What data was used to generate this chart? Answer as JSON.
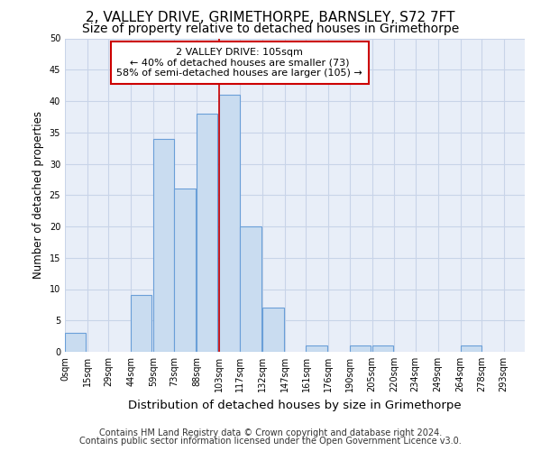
{
  "title1": "2, VALLEY DRIVE, GRIMETHORPE, BARNSLEY, S72 7FT",
  "title2": "Size of property relative to detached houses in Grimethorpe",
  "xlabel": "Distribution of detached houses by size in Grimethorpe",
  "ylabel": "Number of detached properties",
  "footnote1": "Contains HM Land Registry data © Crown copyright and database right 2024.",
  "footnote2": "Contains public sector information licensed under the Open Government Licence v3.0.",
  "annotation_line1": "2 VALLEY DRIVE: 105sqm",
  "annotation_line2": "← 40% of detached houses are smaller (73)",
  "annotation_line3": "58% of semi-detached houses are larger (105) →",
  "bar_left_edges": [
    0,
    15,
    29,
    44,
    59,
    73,
    88,
    103,
    117,
    132,
    147,
    161,
    176,
    190,
    205,
    220,
    234,
    249,
    264,
    278
  ],
  "bar_heights": [
    3,
    0,
    0,
    9,
    34,
    26,
    38,
    41,
    20,
    7,
    0,
    1,
    0,
    1,
    1,
    0,
    0,
    0,
    1,
    0
  ],
  "bin_width": 14,
  "tick_labels": [
    "0sqm",
    "15sqm",
    "29sqm",
    "44sqm",
    "59sqm",
    "73sqm",
    "88sqm",
    "103sqm",
    "117sqm",
    "132sqm",
    "147sqm",
    "161sqm",
    "176sqm",
    "190sqm",
    "205sqm",
    "220sqm",
    "234sqm",
    "249sqm",
    "264sqm",
    "278sqm",
    "293sqm"
  ],
  "bar_color": "#c9dcf0",
  "bar_edge_color": "#6a9fd8",
  "vertical_line_x": 103,
  "vertical_line_color": "#cc0000",
  "annotation_box_color": "#cc0000",
  "ylim": [
    0,
    50
  ],
  "yticks": [
    0,
    5,
    10,
    15,
    20,
    25,
    30,
    35,
    40,
    45,
    50
  ],
  "grid_color": "#c8d4e8",
  "background_color": "#e8eef8",
  "title1_fontsize": 11,
  "title2_fontsize": 10,
  "xlabel_fontsize": 9.5,
  "ylabel_fontsize": 8.5,
  "tick_fontsize": 7,
  "footnote_fontsize": 7,
  "annotation_fontsize": 8
}
